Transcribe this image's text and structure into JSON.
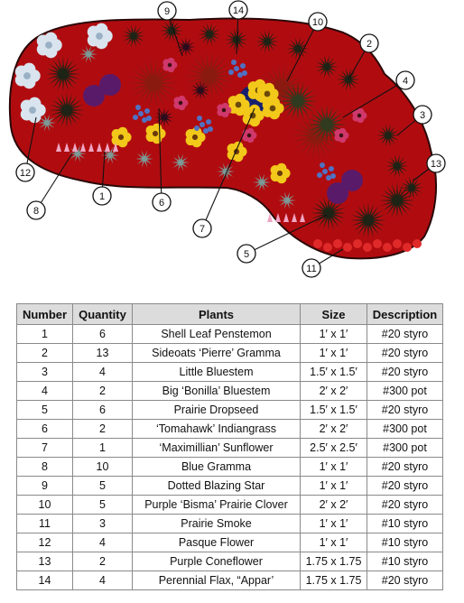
{
  "garden": {
    "colors": {
      "bed": "#b00c10",
      "bed_edge": "#2a0808",
      "grass_dark": "#1d2315",
      "grass_red": "#8a1a10",
      "bluestem": "#2f3a1e",
      "sunflower": "#f2c81a",
      "coneflower": "#d0386c",
      "blue_flower": "#4f72c4",
      "white_flower": "#d9e4ee",
      "purple": "#5a1a6a",
      "gray_clump": "#7b9a96",
      "smoke": "#e02a2a"
    },
    "callouts": [
      "1",
      "2",
      "3",
      "4",
      "5",
      "6",
      "7",
      "8",
      "9",
      "10",
      "11",
      "12",
      "13",
      "14"
    ]
  },
  "table": {
    "headers": [
      "Number",
      "Quantity",
      "Plants",
      "Size",
      "Description"
    ],
    "rows": [
      [
        "1",
        "6",
        "Shell Leaf Penstemon",
        "1′ x 1′",
        "#20 styro"
      ],
      [
        "2",
        "13",
        "Sideoats ‘Pierre’ Gramma",
        "1′ x 1′",
        "#20 styro"
      ],
      [
        "3",
        "4",
        "Little Bluestem",
        "1.5′ x 1.5′",
        "#20 styro"
      ],
      [
        "4",
        "2",
        "Big ‘Bonilla’ Bluestem",
        "2′ x 2′",
        "#300 pot"
      ],
      [
        "5",
        "6",
        "Prairie Dropseed",
        "1.5′ x 1.5′",
        "#20 styro"
      ],
      [
        "6",
        "2",
        "‘Tomahawk’ Indiangrass",
        "2′ x 2′",
        "#300 pot"
      ],
      [
        "7",
        "1",
        "‘Maximillian’ Sunflower",
        "2.5′ x 2.5′",
        "#300 pot"
      ],
      [
        "8",
        "10",
        "Blue Gramma",
        "1′ x 1′",
        "#20 styro"
      ],
      [
        "9",
        "5",
        "Dotted Blazing Star",
        "1′ x 1′",
        "#20 styro"
      ],
      [
        "10",
        "5",
        "Purple ‘Bisma’ Prairie Clover",
        "2′ x 2′",
        "#20 styro"
      ],
      [
        "11",
        "3",
        "Prairie Smoke",
        "1′ x 1′",
        "#10 styro"
      ],
      [
        "12",
        "4",
        "Pasque Flower",
        "1′ x 1′",
        "#10 styro"
      ],
      [
        "13",
        "2",
        "Purple Coneflower",
        "1.75 x 1.75",
        "#10 styro"
      ],
      [
        "14",
        "4",
        "Perennial Flax, “Appar’",
        "1.75 x 1.75",
        "#20 styro"
      ]
    ]
  }
}
